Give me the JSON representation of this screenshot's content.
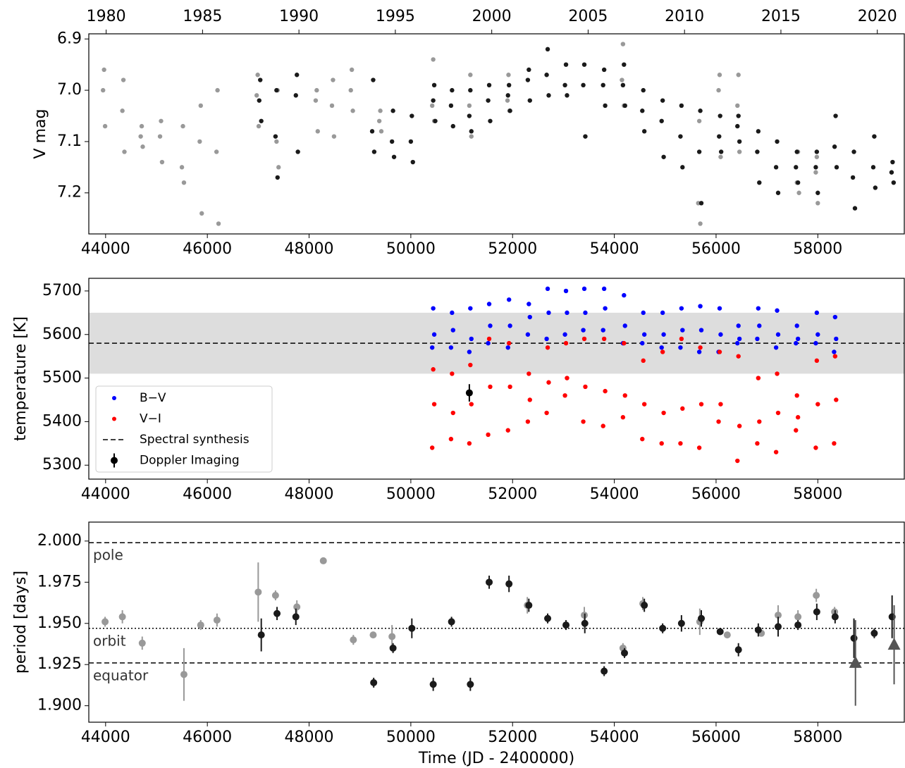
{
  "chart_data": [
    {
      "type": "scatter",
      "y_label": "V mag",
      "xlim": [
        43670,
        59700
      ],
      "xticks": [
        44000,
        46000,
        48000,
        50000,
        52000,
        54000,
        56000,
        58000
      ],
      "ylim": [
        6.89,
        7.28
      ],
      "invert_y": true,
      "yticks": [
        6.9,
        {
          "value": 7,
          "label": "7.0"
        },
        7.1,
        7.2
      ],
      "x2lim": [
        1979.1,
        2021.4
      ],
      "x2ticks": [
        1980,
        1985,
        1990,
        1995,
        2000,
        2005,
        2010,
        2015,
        2020
      ],
      "series": [
        {
          "color": "#999999",
          "x": [
            43950,
            43970,
            43990,
            44330,
            44350,
            44370,
            44690,
            44710,
            44730,
            45070,
            45090,
            45110,
            45500,
            45520,
            45540,
            45850,
            45870,
            45890,
            46180,
            46200,
            46220,
            46970,
            46990,
            47010,
            47360,
            47380,
            47400,
            48130,
            48150,
            48170,
            48450,
            48470,
            48490,
            48820,
            48840,
            48860,
            49380,
            49400,
            49420,
            50420,
            50440,
            50460,
            51150,
            51170,
            51190,
            51900,
            51920,
            51940,
            54150,
            54170,
            54190,
            55650,
            55670,
            55690,
            56050,
            56070,
            56090,
            56420,
            56440,
            56460,
            57590,
            57610,
            57630,
            57960,
            57980,
            58000
          ],
          "values": [
            7.0,
            6.96,
            7.07,
            7.04,
            6.98,
            7.12,
            7.09,
            7.07,
            7.11,
            7.09,
            7.06,
            7.14,
            7.15,
            7.07,
            7.18,
            7.1,
            7.03,
            7.24,
            7.12,
            7.0,
            7.26,
            7.01,
            6.97,
            7.07,
            7.1,
            7.0,
            7.15,
            7.02,
            7.0,
            7.08,
            7.03,
            6.98,
            7.09,
            7.0,
            6.96,
            7.04,
            7.06,
            7.04,
            7.08,
            7.03,
            6.94,
            7.06,
            7.03,
            6.97,
            7.09,
            7.02,
            6.97,
            7.04,
            6.98,
            6.91,
            7.03,
            7.22,
            7.06,
            7.26,
            7.0,
            6.97,
            7.13,
            7.03,
            6.97,
            7.12,
            7.18,
            7.12,
            7.2,
            7.16,
            7.13,
            7.22
          ]
        },
        {
          "color": "#1a1a1a",
          "x": [
            47020,
            47040,
            47060,
            47340,
            47360,
            47380,
            47740,
            47760,
            47780,
            49240,
            49260,
            49280,
            49630,
            49650,
            49670,
            50000,
            50020,
            50040,
            50440,
            50460,
            50480,
            50790,
            50810,
            50830,
            51150,
            51170,
            51190,
            51520,
            51540,
            51560,
            51910,
            51930,
            51950,
            52300,
            52320,
            52340,
            52670,
            52690,
            52710,
            53030,
            53050,
            53070,
            53390,
            53410,
            53430,
            53780,
            53800,
            53820,
            54170,
            54190,
            54210,
            54550,
            54570,
            54590,
            54930,
            54950,
            54970,
            55300,
            55320,
            55340,
            55670,
            55690,
            55710,
            56060,
            56080,
            56100,
            56420,
            56440,
            56460,
            56810,
            56830,
            56850,
            57180,
            57200,
            57220,
            57570,
            57590,
            57610,
            57960,
            57980,
            58000,
            58330,
            58350,
            58370,
            58690,
            58710,
            58730,
            59090,
            59110,
            59130,
            59450,
            59470,
            59490
          ],
          "values": [
            7.02,
            6.98,
            7.06,
            7.09,
            7.0,
            7.17,
            7.01,
            6.97,
            7.12,
            7.08,
            6.98,
            7.12,
            7.1,
            7.04,
            7.13,
            7.1,
            7.05,
            7.14,
            7.02,
            6.99,
            7.06,
            7.03,
            7.0,
            7.07,
            7.05,
            7.0,
            7.08,
            7.02,
            6.99,
            7.06,
            7.01,
            6.99,
            7.04,
            6.98,
            6.96,
            7.02,
            6.97,
            6.92,
            7.01,
            6.99,
            6.95,
            7.01,
            6.99,
            6.95,
            7.09,
            6.99,
            6.96,
            7.03,
            6.99,
            6.95,
            7.03,
            7.04,
            7.0,
            7.08,
            7.06,
            7.02,
            7.13,
            7.09,
            7.03,
            7.15,
            7.12,
            7.04,
            7.22,
            7.09,
            7.05,
            7.12,
            7.07,
            7.05,
            7.1,
            7.12,
            7.08,
            7.18,
            7.15,
            7.1,
            7.2,
            7.15,
            7.12,
            7.18,
            7.15,
            7.12,
            7.2,
            7.11,
            7.05,
            7.15,
            7.17,
            7.12,
            7.23,
            7.15,
            7.09,
            7.19,
            7.16,
            7.14,
            7.18
          ]
        }
      ]
    },
    {
      "type": "scatter",
      "y_label": "temperature [K]",
      "legend": "lower left",
      "xlim": [
        43670,
        59700
      ],
      "xticks": [
        44000,
        46000,
        48000,
        50000,
        52000,
        54000,
        56000,
        58000
      ],
      "ylim": [
        5268,
        5729
      ],
      "yticks": [
        5300,
        5400,
        5500,
        5600,
        5700
      ],
      "band": [
        5510,
        5650
      ],
      "band_color": "#dddddd",
      "reference_lines": [
        {
          "name": "Spectral synthesis",
          "value": 5580,
          "style": "dashed"
        }
      ],
      "series": [
        {
          "name": "B−V",
          "color": "#0000ff",
          "x": [
            50420,
            50440,
            50460,
            50790,
            50810,
            50830,
            51150,
            51170,
            51190,
            51520,
            51540,
            51560,
            51910,
            51930,
            51950,
            52300,
            52320,
            52340,
            52670,
            52690,
            52710,
            53030,
            53050,
            53070,
            53390,
            53410,
            53430,
            53780,
            53800,
            53820,
            54170,
            54190,
            54210,
            54550,
            54570,
            54590,
            54930,
            54950,
            54970,
            55300,
            55320,
            55340,
            55670,
            55690,
            55710,
            56050,
            56070,
            56090,
            56420,
            56440,
            56460,
            56810,
            56830,
            56850,
            57180,
            57200,
            57220,
            57570,
            57590,
            57610,
            57960,
            57980,
            58000,
            58320,
            58340,
            58360
          ],
          "values": [
            5570,
            5660,
            5600,
            5570,
            5650,
            5610,
            5560,
            5660,
            5590,
            5580,
            5670,
            5620,
            5570,
            5680,
            5620,
            5600,
            5670,
            5640,
            5590,
            5705,
            5650,
            5600,
            5700,
            5650,
            5610,
            5705,
            5650,
            5610,
            5705,
            5660,
            5580,
            5690,
            5620,
            5580,
            5650,
            5600,
            5570,
            5650,
            5600,
            5570,
            5660,
            5610,
            5560,
            5665,
            5610,
            5560,
            5660,
            5600,
            5580,
            5620,
            5590,
            5590,
            5660,
            5620,
            5570,
            5655,
            5600,
            5580,
            5620,
            5590,
            5580,
            5650,
            5600,
            5560,
            5640,
            5590
          ]
        },
        {
          "name": "V−I",
          "color": "#ff0000",
          "x": [
            50420,
            50440,
            50460,
            50790,
            50810,
            50830,
            51150,
            51170,
            51190,
            51520,
            51540,
            51560,
            51910,
            51930,
            51950,
            52300,
            52320,
            52340,
            52670,
            52690,
            52710,
            53030,
            53050,
            53070,
            53390,
            53410,
            53430,
            53780,
            53800,
            53820,
            54170,
            54190,
            54210,
            54550,
            54570,
            54590,
            54930,
            54950,
            54970,
            55300,
            55320,
            55340,
            55670,
            55690,
            55710,
            56050,
            56070,
            56090,
            56420,
            56440,
            56460,
            56810,
            56830,
            56850,
            57180,
            57200,
            57220,
            57570,
            57590,
            57610,
            57960,
            57980,
            58000,
            58320,
            58340,
            58360
          ],
          "values": [
            5340,
            5520,
            5440,
            5360,
            5510,
            5420,
            5350,
            5530,
            5440,
            5370,
            5590,
            5480,
            5380,
            5580,
            5480,
            5400,
            5510,
            5450,
            5420,
            5570,
            5490,
            5460,
            5580,
            5500,
            5400,
            5590,
            5480,
            5390,
            5590,
            5470,
            5410,
            5580,
            5460,
            5360,
            5540,
            5440,
            5350,
            5560,
            5420,
            5350,
            5590,
            5430,
            5340,
            5570,
            5440,
            5400,
            5560,
            5440,
            5310,
            5550,
            5390,
            5350,
            5500,
            5400,
            5330,
            5510,
            5420,
            5380,
            5460,
            5410,
            5340,
            5540,
            5440,
            5350,
            5550,
            5450
          ]
        },
        {
          "name": "Doppler Imaging",
          "color": "#000000",
          "x": [
            51150
          ],
          "values": [
            5466
          ],
          "errors": [
            20
          ]
        }
      ]
    },
    {
      "type": "errorbar",
      "y_label": "period [days]",
      "x_label": "Time (JD - 2400000)",
      "xlim": [
        43670,
        59700
      ],
      "xticks": [
        44000,
        46000,
        48000,
        50000,
        52000,
        54000,
        56000,
        58000
      ],
      "ylim": [
        1.89,
        2.0115
      ],
      "yticks": [
        {
          "value": 1.9,
          "label": "1.900"
        },
        {
          "value": 1.925,
          "label": "1.925"
        },
        {
          "value": 1.95,
          "label": "1.950"
        },
        {
          "value": 1.975,
          "label": "1.975"
        },
        {
          "value": 2,
          "label": "2.000"
        }
      ],
      "reference_lines": [
        {
          "name": "pole",
          "value": 1.999,
          "style": "dashed"
        },
        {
          "name": "orbit",
          "value": 1.947,
          "style": "dotted"
        },
        {
          "name": "equator",
          "value": 1.926,
          "style": "dashed"
        }
      ],
      "series": [
        {
          "color": "#999999",
          "marker": "circle",
          "x": [
            43990,
            44330,
            44720,
            45540,
            45870,
            46190,
            47000,
            47340,
            47760,
            48280,
            48870,
            49260,
            49630,
            52290,
            53410,
            54170,
            54560,
            55680,
            56220,
            56890,
            57220,
            57610,
            57970,
            58330
          ],
          "values": [
            1.951,
            1.954,
            1.938,
            1.919,
            1.949,
            1.952,
            1.969,
            1.967,
            1.96,
            1.988,
            1.94,
            1.943,
            1.942,
            1.961,
            1.955,
            1.935,
            1.962,
            1.951,
            1.943,
            1.944,
            1.955,
            1.954,
            1.967,
            1.957
          ],
          "errors": [
            0.003,
            0.004,
            0.004,
            0.016,
            0.003,
            0.004,
            0.018,
            0.003,
            0.004,
            0,
            0.003,
            0.002,
            0.007,
            0.005,
            0.005,
            0.003,
            0.004,
            0.008,
            0.001,
            0.001,
            0.006,
            0.004,
            0.004,
            0.003
          ]
        },
        {
          "color": "#1a1a1a",
          "marker": "circle",
          "x": [
            47060,
            47370,
            47740,
            49270,
            49650,
            50020,
            50440,
            50800,
            51170,
            51540,
            51930,
            52320,
            52690,
            53050,
            53420,
            53800,
            54200,
            54590,
            54950,
            55320,
            55710,
            56080,
            56440,
            56830,
            57220,
            57610,
            57980,
            58340,
            58710,
            59110,
            59460
          ],
          "values": [
            1.943,
            1.956,
            1.954,
            1.914,
            1.935,
            1.947,
            1.913,
            1.951,
            1.913,
            1.975,
            1.974,
            1.961,
            1.953,
            1.949,
            1.95,
            1.921,
            1.932,
            1.961,
            1.947,
            1.95,
            1.953,
            1.945,
            1.934,
            1.946,
            1.948,
            1.949,
            1.957,
            1.954,
            1.941,
            1.944,
            1.954
          ],
          "errors": [
            0.01,
            0.004,
            0.005,
            0.003,
            0.003,
            0.006,
            0.004,
            0.003,
            0.004,
            0.004,
            0.005,
            0.004,
            0.003,
            0.003,
            0.006,
            0.003,
            0.003,
            0.004,
            0.003,
            0.005,
            0.005,
            0.002,
            0.004,
            0.004,
            0.006,
            0.003,
            0.005,
            0.004,
            0.012,
            0.003,
            0.013
          ]
        },
        {
          "color": "#555555",
          "marker": "triangle",
          "x": [
            58740,
            59500
          ],
          "values": [
            1.926,
            1.937
          ],
          "errors": [
            0.026,
            0.024
          ]
        }
      ]
    }
  ]
}
